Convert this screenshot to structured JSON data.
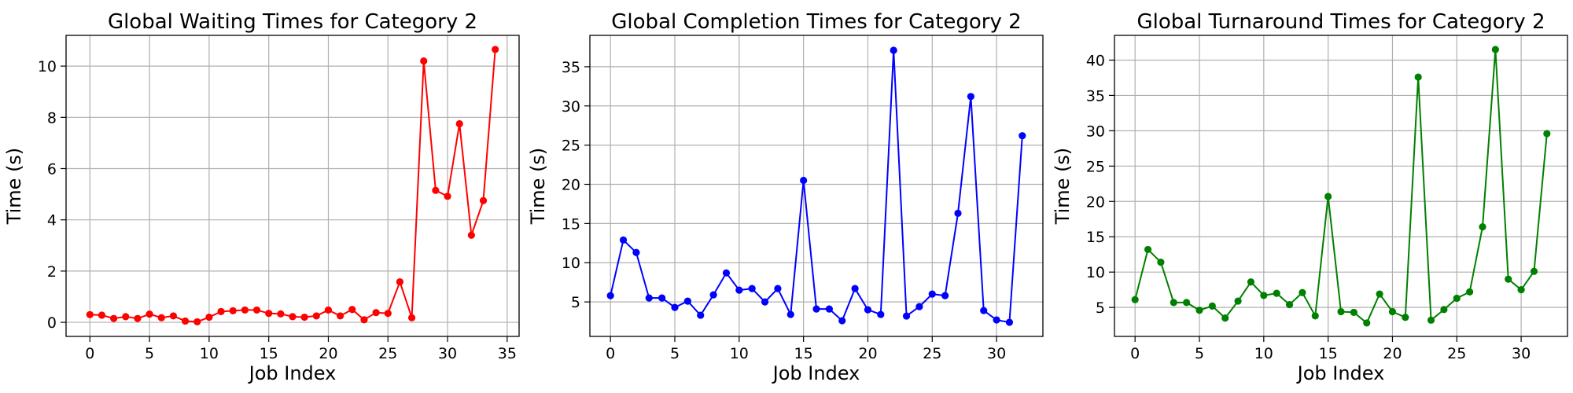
{
  "chart_data": [
    {
      "type": "line",
      "title": "Global Waiting Times for Category 2",
      "xlabel": "Job Index",
      "ylabel": "Time (s)",
      "xlim": [
        -2,
        36
      ],
      "ylim": [
        -0.55,
        11.2
      ],
      "xticks": [
        0,
        5,
        10,
        15,
        20,
        25,
        30,
        35
      ],
      "yticks": [
        0,
        2,
        4,
        6,
        8,
        10
      ],
      "grid": true,
      "color": "#ff0000",
      "series": [
        {
          "x": [
            0,
            1,
            2,
            3,
            4,
            5,
            6,
            7,
            8,
            9,
            10,
            11,
            12,
            13,
            14,
            15,
            16,
            17,
            18,
            19,
            20,
            21,
            22,
            23,
            24,
            25,
            26,
            27,
            28,
            29,
            30,
            31,
            32,
            33,
            34
          ],
          "values": [
            0.3,
            0.28,
            0.15,
            0.22,
            0.15,
            0.32,
            0.18,
            0.25,
            0.05,
            0.02,
            0.2,
            0.42,
            0.45,
            0.48,
            0.48,
            0.35,
            0.33,
            0.22,
            0.2,
            0.25,
            0.48,
            0.25,
            0.5,
            0.1,
            0.38,
            0.35,
            1.58,
            0.18,
            10.2,
            5.15,
            4.92,
            7.75,
            3.4,
            4.75,
            10.65
          ]
        }
      ]
    },
    {
      "type": "line",
      "title": "Global Completion Times for Category 2",
      "xlabel": "Job Index",
      "ylabel": "Time (s)",
      "xlim": [
        -1.6,
        33.6
      ],
      "ylim": [
        0.6,
        39.0
      ],
      "xticks": [
        0,
        5,
        10,
        15,
        20,
        25,
        30
      ],
      "yticks": [
        5,
        10,
        15,
        20,
        25,
        30,
        35
      ],
      "grid": true,
      "color": "#0000ff",
      "series": [
        {
          "x": [
            0,
            1,
            2,
            3,
            4,
            5,
            6,
            7,
            8,
            9,
            10,
            11,
            12,
            13,
            14,
            15,
            16,
            17,
            18,
            19,
            20,
            21,
            22,
            23,
            24,
            25,
            26,
            27,
            28,
            29,
            30,
            31,
            32
          ],
          "values": [
            5.8,
            12.9,
            11.3,
            5.5,
            5.5,
            4.3,
            5.1,
            3.3,
            5.9,
            8.7,
            6.5,
            6.7,
            5.0,
            6.7,
            3.4,
            20.5,
            4.1,
            4.1,
            2.6,
            6.7,
            4.0,
            3.4,
            37.1,
            3.2,
            4.4,
            6.0,
            5.8,
            16.3,
            31.2,
            3.9,
            2.7,
            2.4,
            26.2
          ]
        }
      ]
    },
    {
      "type": "line",
      "title": "Global Turnaround Times for Category 2",
      "xlabel": "Job Index",
      "ylabel": "Time (s)",
      "xlim": [
        -1.6,
        33.6
      ],
      "ylim": [
        0.9,
        43.5
      ],
      "xticks": [
        0,
        5,
        10,
        15,
        20,
        25,
        30
      ],
      "yticks": [
        5,
        10,
        15,
        20,
        25,
        30,
        35,
        40
      ],
      "grid": true,
      "color": "#008000",
      "series": [
        {
          "x": [
            0,
            1,
            2,
            3,
            4,
            5,
            6,
            7,
            8,
            9,
            10,
            11,
            12,
            13,
            14,
            15,
            16,
            17,
            18,
            19,
            20,
            21,
            22,
            23,
            24,
            25,
            26,
            27,
            28,
            29,
            30,
            31,
            32
          ],
          "values": [
            6.1,
            13.2,
            11.4,
            5.7,
            5.7,
            4.6,
            5.2,
            3.5,
            5.9,
            8.6,
            6.7,
            7.0,
            5.4,
            7.1,
            3.8,
            20.7,
            4.4,
            4.3,
            2.8,
            6.9,
            4.4,
            3.6,
            37.6,
            3.2,
            4.7,
            6.3,
            7.2,
            16.4,
            41.5,
            9.0,
            7.5,
            10.1,
            29.6
          ]
        }
      ]
    }
  ]
}
